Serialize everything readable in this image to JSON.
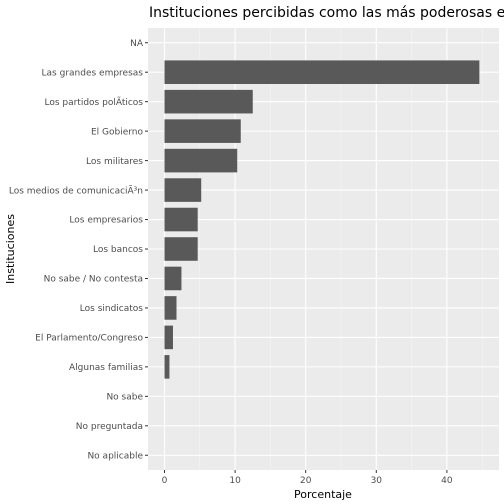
{
  "chart_data": {
    "type": "bar",
    "orientation": "horizontal",
    "title": "Instituciones percibidas como las más poderosas en Chile",
    "xlabel": "Porcentaje",
    "ylabel": "Instituciones",
    "xlim": [
      0,
      45
    ],
    "xticks": [
      0,
      10,
      20,
      30,
      40
    ],
    "grid": true,
    "legend": "none",
    "categories": [
      "NA",
      "Las grandes empresas",
      "Los partidos polÃ­ticos",
      "El Gobierno",
      "Los militares",
      "Los medios de comunicaciÃ³n",
      "Los empresarios",
      "Los bancos",
      "No sabe / No contesta",
      "Los sindicatos",
      "El Parlamento/Congreso",
      "Algunas familias",
      "No sabe",
      "No preguntada",
      "No aplicable"
    ],
    "values": [
      0,
      44.6,
      12.5,
      10.8,
      10.3,
      5.2,
      4.7,
      4.7,
      2.4,
      1.7,
      1.2,
      0.7,
      0,
      0,
      0
    ],
    "colors": {
      "panel": "#ebebeb",
      "grid_major": "#ffffff",
      "grid_minor": "#f5f5f5",
      "bar": "#595959",
      "tick_text": "#4d4d4d",
      "tick_mark": "#333333"
    }
  }
}
